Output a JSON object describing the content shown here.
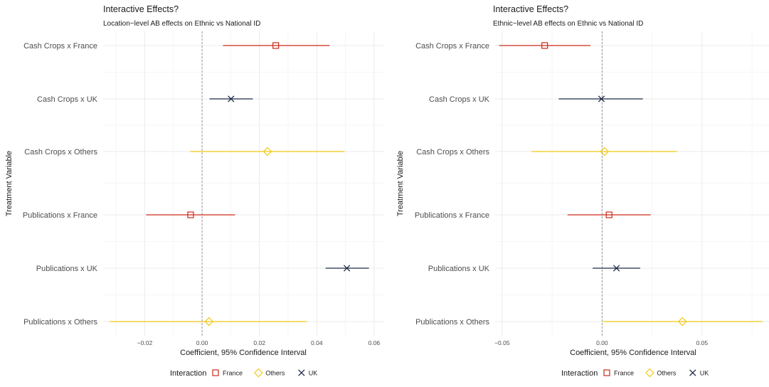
{
  "chart_data": [
    {
      "type": "errorbar",
      "title": "Interactive Effects?",
      "subtitle": "Location−level AB effects on Ethnic vs National ID",
      "xlabel": "Coefficient, 95% Confidence Interval",
      "ylabel": "Treatment Variable",
      "xlim": [
        -0.0345,
        0.0635
      ],
      "xticks": [
        -0.02,
        0.0,
        0.02,
        0.04,
        0.06
      ],
      "xtick_labels": [
        "−0.02",
        "0.00",
        "0.02",
        "0.04",
        "0.06"
      ],
      "reference_line": 0,
      "grid": true,
      "legend_position": "bottom",
      "categories": [
        "Cash Crops x France",
        "Cash Crops x UK",
        "Cash Crops x Others",
        "Publications x France",
        "Publications x UK",
        "Publications x Others"
      ],
      "series": [
        {
          "name": "France",
          "color": "#cc2a1a",
          "shape": "square-open",
          "points": [
            {
              "category": "Cash Crops x France",
              "estimate": 0.0257,
              "low": 0.0073,
              "high": 0.0445
            },
            {
              "category": "Publications x France",
              "estimate": -0.004,
              "low": -0.0195,
              "high": 0.0115
            }
          ]
        },
        {
          "name": "Others",
          "color": "#f2c811",
          "shape": "diamond-open",
          "points": [
            {
              "category": "Cash Crops x Others",
              "estimate": 0.0228,
              "low": -0.0042,
              "high": 0.0497
            },
            {
              "category": "Publications x Others",
              "estimate": 0.0024,
              "low": -0.0322,
              "high": 0.0366
            }
          ]
        },
        {
          "name": "UK",
          "color": "#1b2a45",
          "shape": "x",
          "points": [
            {
              "category": "Cash Crops x UK",
              "estimate": 0.0101,
              "low": 0.0026,
              "high": 0.0177
            },
            {
              "category": "Publications x UK",
              "estimate": 0.0505,
              "low": 0.0431,
              "high": 0.0582
            }
          ]
        }
      ]
    },
    {
      "type": "errorbar",
      "title": "Interactive Effects?",
      "subtitle": "Ethnic−level AB effects on Ethnic vs National ID",
      "xlabel": "Coefficient, 95% Confidence Interval",
      "ylabel": "Treatment Variable",
      "xlim": [
        -0.0535,
        0.0835
      ],
      "xticks": [
        -0.05,
        0.0,
        0.05
      ],
      "xtick_labels": [
        "−0.05",
        "0.00",
        "0.05"
      ],
      "reference_line": 0,
      "grid": true,
      "legend_position": "bottom",
      "categories": [
        "Cash Crops x France",
        "Cash Crops x UK",
        "Cash Crops x Others",
        "Publications x France",
        "Publications x UK",
        "Publications x Others"
      ],
      "series": [
        {
          "name": "France",
          "color": "#cc2a1a",
          "shape": "square-open",
          "points": [
            {
              "category": "Cash Crops x France",
              "estimate": -0.0287,
              "low": -0.0515,
              "high": -0.0058
            },
            {
              "category": "Publications x France",
              "estimate": 0.0035,
              "low": -0.0173,
              "high": 0.0243
            }
          ]
        },
        {
          "name": "Others",
          "color": "#f2c811",
          "shape": "diamond-open",
          "points": [
            {
              "category": "Cash Crops x Others",
              "estimate": 0.0012,
              "low": -0.0353,
              "high": 0.0375
            },
            {
              "category": "Publications x Others",
              "estimate": 0.0402,
              "low": 0.0004,
              "high": 0.0802
            }
          ]
        },
        {
          "name": "UK",
          "color": "#1b2a45",
          "shape": "x",
          "points": [
            {
              "category": "Cash Crops x UK",
              "estimate": -0.0003,
              "low": -0.0217,
              "high": 0.0204
            },
            {
              "category": "Publications x UK",
              "estimate": 0.0072,
              "low": -0.0047,
              "high": 0.0191
            }
          ]
        }
      ]
    }
  ],
  "legend": {
    "title": "Interaction",
    "items": [
      {
        "name": "France",
        "color": "#cc2a1a",
        "shape": "square-open"
      },
      {
        "name": "Others",
        "color": "#f2c811",
        "shape": "diamond-open"
      },
      {
        "name": "UK",
        "color": "#1b2a45",
        "shape": "x"
      }
    ]
  }
}
